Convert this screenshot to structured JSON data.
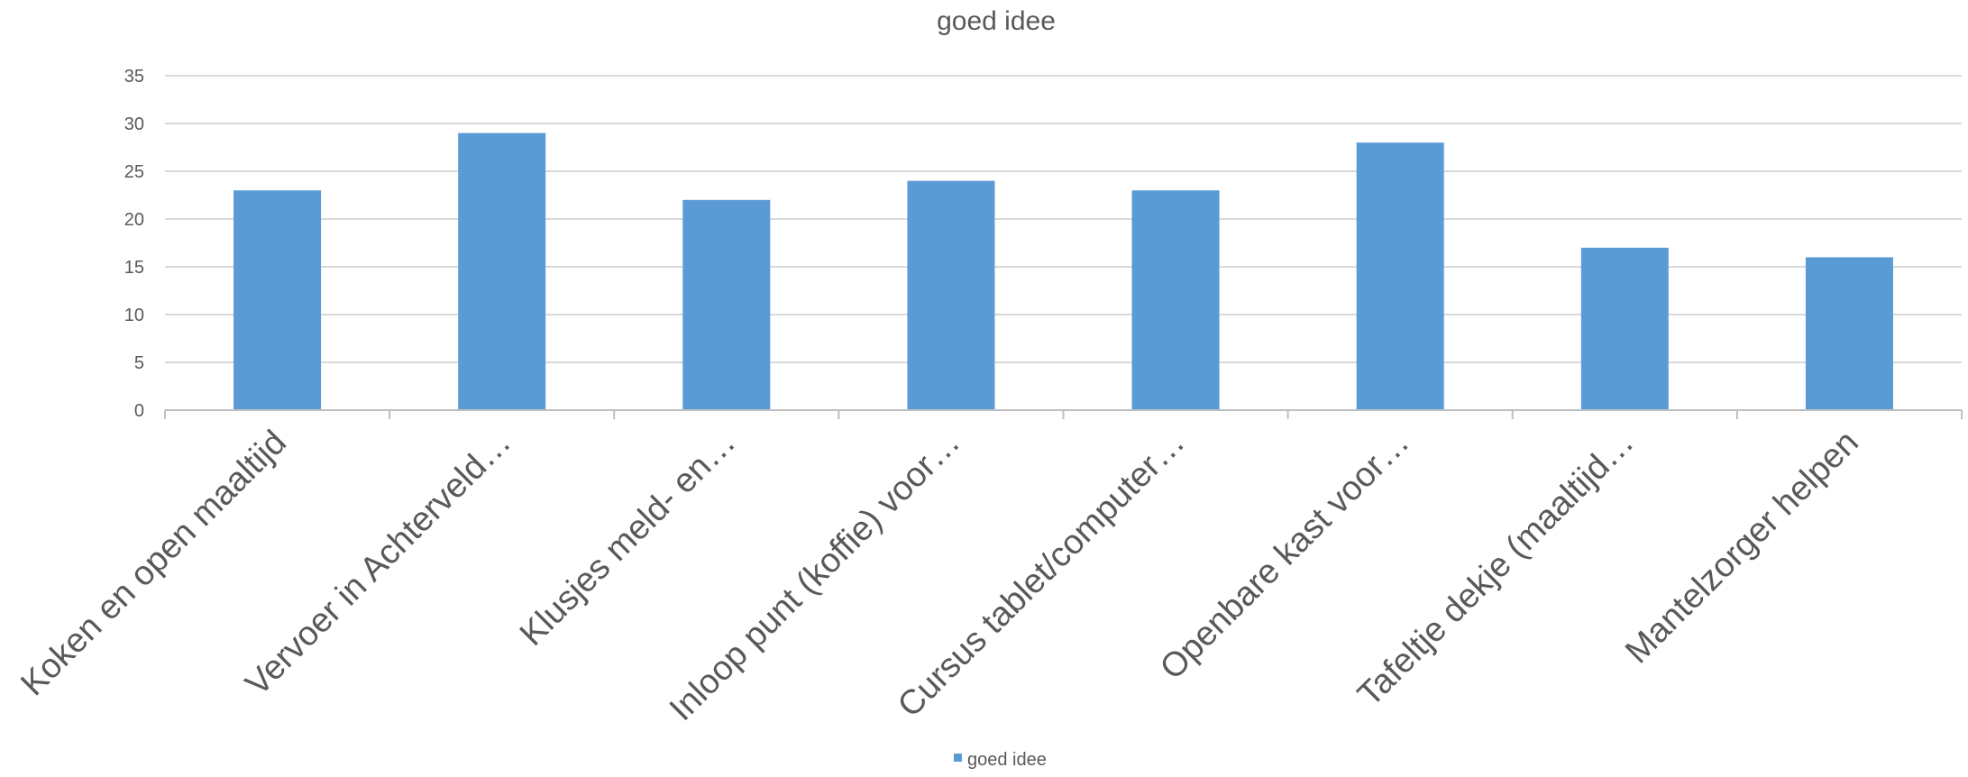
{
  "chart_data": {
    "type": "bar",
    "title": "goed idee",
    "xlabel": "",
    "ylabel": "",
    "categories": [
      "Koken en open maaltijd",
      "Vervoer in Achterveld…",
      "Klusjes meld- en…",
      "Inloop punt (koffie) voor…",
      "Cursus  tablet/computer…",
      "Openbare kast voor…",
      "Tafeltje dekje (maaltijd…",
      "Mantelzorger helpen"
    ],
    "series": [
      {
        "name": "goed idee",
        "values": [
          23,
          29,
          22,
          24,
          23,
          28,
          17,
          16
        ],
        "color": "#5b9bd5"
      }
    ],
    "ylim": [
      0,
      35
    ],
    "yticks": [
      0,
      5,
      10,
      15,
      20,
      25,
      30,
      35
    ],
    "grid": true,
    "legend": "bottom-center",
    "colors": {
      "bar": "#5b9bd5",
      "grid": "#d9d9d9",
      "axis": "#bfbfbf",
      "text": "#595959"
    }
  }
}
